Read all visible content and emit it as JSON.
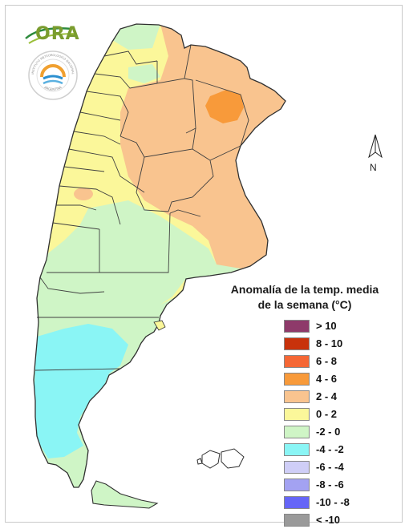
{
  "logo": {
    "brand_text": "ORA",
    "seal_ring_text": "INSTITUTO METEOROLOGICO NACIONAL",
    "seal_country_text": "ARGENTINA"
  },
  "north_arrow": {
    "label": "N"
  },
  "legend": {
    "title_line1": "Anomalía de la temp. media",
    "title_line2": "de la semana (°C)",
    "items": [
      {
        "label": "> 10",
        "color": "#8e3a6a"
      },
      {
        "label": "8 - 10",
        "color": "#c8320b"
      },
      {
        "label": "6 - 8",
        "color": "#f56735"
      },
      {
        "label": "4 - 6",
        "color": "#f89a3a"
      },
      {
        "label": "2 - 4",
        "color": "#f9c48f"
      },
      {
        "label": "0 - 2",
        "color": "#fbf79a"
      },
      {
        "label": "-2 - 0",
        "color": "#cff5c6"
      },
      {
        "label": "-4 - -2",
        "color": "#8af5f5"
      },
      {
        "label": "-6 - -4",
        "color": "#cfcef7"
      },
      {
        "label": "-8 - -6",
        "color": "#a3a2f2"
      },
      {
        "label": "-10 - -8",
        "color": "#6565f7"
      },
      {
        "label": "< -10",
        "color": "#9a9a9a"
      }
    ]
  },
  "map": {
    "country": "Argentina",
    "zone_colors": {
      "warm_2_4": "#f9c48f",
      "warm_4_6": "#f89a3a",
      "mild_0_2": "#fbf79a",
      "cool_-2_0": "#cff5c6",
      "cold_-4_-2": "#8af5f5"
    }
  }
}
